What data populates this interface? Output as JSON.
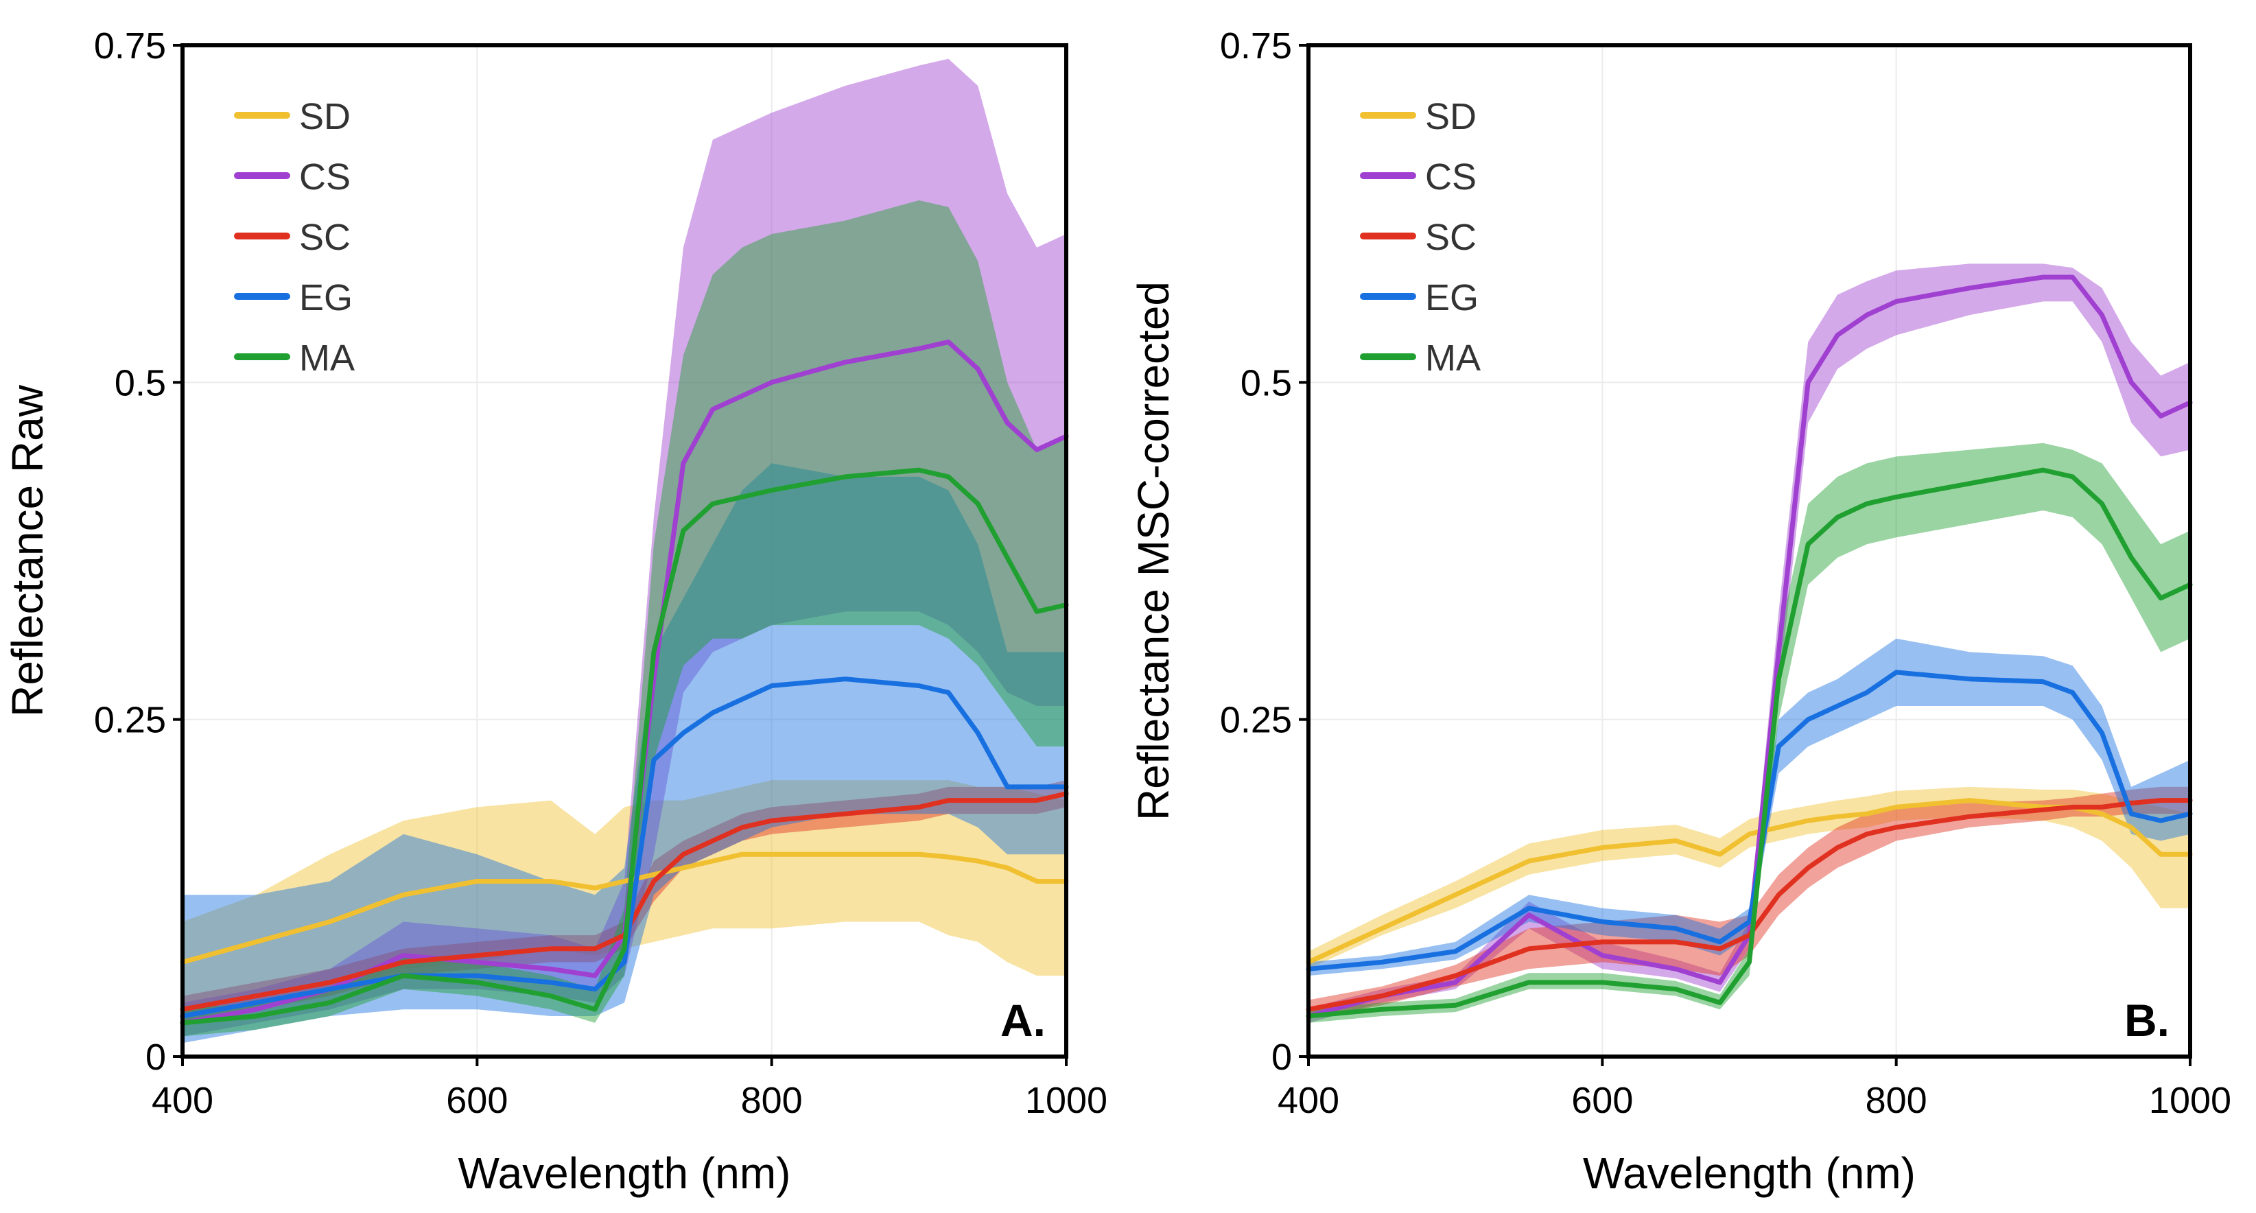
{
  "chart_data": [
    {
      "type": "line",
      "panel_label": "A.",
      "title": "",
      "xlabel": "Wavelength (nm)",
      "ylabel": "Reflectance Raw",
      "xlim": [
        400,
        1000
      ],
      "ylim": [
        0,
        0.75
      ],
      "xticks": [
        400,
        600,
        800,
        1000
      ],
      "yticks": [
        0,
        0.25,
        0.5,
        0.75
      ],
      "xtick_labels": [
        "400",
        "600",
        "800",
        "1000"
      ],
      "ytick_labels": [
        "0",
        "0.25",
        "0.5",
        "0.75"
      ],
      "grid": true,
      "legend_position": "top-left",
      "x": [
        400,
        450,
        500,
        550,
        600,
        650,
        680,
        700,
        720,
        740,
        760,
        780,
        800,
        850,
        900,
        920,
        940,
        960,
        980,
        1000
      ],
      "series": [
        {
          "name": "SD",
          "color": "#f0c030",
          "mean": [
            0.07,
            0.085,
            0.1,
            0.12,
            0.13,
            0.13,
            0.125,
            0.13,
            0.135,
            0.14,
            0.145,
            0.15,
            0.15,
            0.15,
            0.15,
            0.148,
            0.145,
            0.14,
            0.13,
            0.13
          ],
          "lower": [
            0.03,
            0.04,
            0.05,
            0.065,
            0.07,
            0.08,
            0.075,
            0.08,
            0.085,
            0.09,
            0.095,
            0.095,
            0.095,
            0.1,
            0.1,
            0.09,
            0.085,
            0.07,
            0.06,
            0.06
          ],
          "upper": [
            0.1,
            0.12,
            0.15,
            0.175,
            0.185,
            0.19,
            0.165,
            0.185,
            0.19,
            0.19,
            0.195,
            0.2,
            0.205,
            0.205,
            0.205,
            0.205,
            0.2,
            0.2,
            0.195,
            0.19
          ]
        },
        {
          "name": "CS",
          "color": "#a040d0",
          "mean": [
            0.025,
            0.035,
            0.05,
            0.075,
            0.07,
            0.065,
            0.06,
            0.09,
            0.28,
            0.44,
            0.48,
            0.49,
            0.5,
            0.515,
            0.525,
            0.53,
            0.51,
            0.47,
            0.45,
            0.46
          ],
          "lower": [
            0.015,
            0.025,
            0.035,
            0.05,
            0.05,
            0.045,
            0.04,
            0.06,
            0.15,
            0.27,
            0.3,
            0.31,
            0.32,
            0.33,
            0.33,
            0.32,
            0.3,
            0.27,
            0.26,
            0.26
          ],
          "upper": [
            0.04,
            0.05,
            0.065,
            0.1,
            0.095,
            0.09,
            0.08,
            0.13,
            0.4,
            0.6,
            0.68,
            0.69,
            0.7,
            0.72,
            0.735,
            0.74,
            0.72,
            0.64,
            0.6,
            0.61
          ]
        },
        {
          "name": "SC",
          "color": "#e03020",
          "mean": [
            0.035,
            0.045,
            0.055,
            0.07,
            0.075,
            0.08,
            0.08,
            0.09,
            0.13,
            0.15,
            0.16,
            0.17,
            0.175,
            0.18,
            0.185,
            0.19,
            0.19,
            0.19,
            0.19,
            0.195
          ],
          "lower": [
            0.025,
            0.035,
            0.045,
            0.06,
            0.065,
            0.07,
            0.07,
            0.08,
            0.115,
            0.14,
            0.15,
            0.16,
            0.165,
            0.17,
            0.175,
            0.18,
            0.18,
            0.18,
            0.18,
            0.185
          ],
          "upper": [
            0.045,
            0.055,
            0.065,
            0.08,
            0.085,
            0.09,
            0.09,
            0.1,
            0.145,
            0.16,
            0.17,
            0.18,
            0.185,
            0.19,
            0.195,
            0.2,
            0.2,
            0.2,
            0.2,
            0.205
          ]
        },
        {
          "name": "EG",
          "color": "#1870e0",
          "mean": [
            0.03,
            0.04,
            0.05,
            0.06,
            0.06,
            0.055,
            0.05,
            0.07,
            0.22,
            0.24,
            0.255,
            0.265,
            0.275,
            0.28,
            0.275,
            0.27,
            0.24,
            0.2,
            0.2,
            0.2
          ],
          "lower": [
            0.01,
            0.02,
            0.03,
            0.035,
            0.035,
            0.03,
            0.03,
            0.04,
            0.12,
            0.14,
            0.15,
            0.16,
            0.17,
            0.18,
            0.18,
            0.18,
            0.17,
            0.15,
            0.15,
            0.15
          ],
          "upper": [
            0.12,
            0.12,
            0.13,
            0.165,
            0.15,
            0.13,
            0.12,
            0.14,
            0.3,
            0.34,
            0.38,
            0.42,
            0.44,
            0.43,
            0.43,
            0.42,
            0.38,
            0.3,
            0.3,
            0.3
          ]
        },
        {
          "name": "MA",
          "color": "#20a030",
          "mean": [
            0.025,
            0.03,
            0.04,
            0.06,
            0.055,
            0.045,
            0.035,
            0.08,
            0.3,
            0.39,
            0.41,
            0.415,
            0.42,
            0.43,
            0.435,
            0.43,
            0.41,
            0.37,
            0.33,
            0.335
          ],
          "lower": [
            0.015,
            0.02,
            0.03,
            0.05,
            0.045,
            0.035,
            0.025,
            0.06,
            0.22,
            0.29,
            0.31,
            0.31,
            0.32,
            0.32,
            0.32,
            0.31,
            0.29,
            0.26,
            0.23,
            0.23
          ],
          "upper": [
            0.035,
            0.04,
            0.05,
            0.075,
            0.07,
            0.06,
            0.05,
            0.11,
            0.38,
            0.52,
            0.58,
            0.6,
            0.61,
            0.62,
            0.635,
            0.63,
            0.59,
            0.5,
            0.45,
            0.46
          ]
        }
      ]
    },
    {
      "type": "line",
      "panel_label": "B.",
      "title": "",
      "xlabel": "Wavelength (nm)",
      "ylabel": "Reflectance MSC-corrected",
      "xlim": [
        400,
        1000
      ],
      "ylim": [
        0,
        0.75
      ],
      "xticks": [
        400,
        600,
        800,
        1000
      ],
      "yticks": [
        0,
        0.25,
        0.5,
        0.75
      ],
      "xtick_labels": [
        "400",
        "600",
        "800",
        "1000"
      ],
      "ytick_labels": [
        "0",
        "0.25",
        "0.5",
        "0.75"
      ],
      "grid": true,
      "legend_position": "top-left",
      "x": [
        400,
        450,
        500,
        550,
        600,
        650,
        680,
        700,
        720,
        740,
        760,
        780,
        800,
        850,
        900,
        920,
        940,
        960,
        980,
        1000
      ],
      "series": [
        {
          "name": "SD",
          "color": "#f0c030",
          "mean": [
            0.07,
            0.095,
            0.12,
            0.145,
            0.155,
            0.16,
            0.15,
            0.165,
            0.17,
            0.175,
            0.178,
            0.18,
            0.185,
            0.19,
            0.185,
            0.185,
            0.18,
            0.17,
            0.15,
            0.15
          ],
          "lower": [
            0.065,
            0.09,
            0.11,
            0.135,
            0.145,
            0.15,
            0.14,
            0.155,
            0.16,
            0.165,
            0.168,
            0.17,
            0.175,
            0.178,
            0.175,
            0.17,
            0.16,
            0.14,
            0.11,
            0.11
          ],
          "upper": [
            0.078,
            0.105,
            0.13,
            0.158,
            0.168,
            0.172,
            0.162,
            0.176,
            0.182,
            0.186,
            0.19,
            0.193,
            0.197,
            0.2,
            0.198,
            0.198,
            0.195,
            0.19,
            0.185,
            0.18
          ]
        },
        {
          "name": "CS",
          "color": "#a040d0",
          "mean": [
            0.03,
            0.045,
            0.055,
            0.105,
            0.075,
            0.065,
            0.055,
            0.09,
            0.3,
            0.5,
            0.535,
            0.55,
            0.56,
            0.57,
            0.578,
            0.578,
            0.55,
            0.5,
            0.475,
            0.485
          ],
          "lower": [
            0.025,
            0.04,
            0.05,
            0.095,
            0.065,
            0.058,
            0.048,
            0.08,
            0.27,
            0.47,
            0.51,
            0.525,
            0.535,
            0.55,
            0.56,
            0.56,
            0.53,
            0.47,
            0.445,
            0.45
          ],
          "upper": [
            0.036,
            0.05,
            0.06,
            0.115,
            0.085,
            0.072,
            0.062,
            0.1,
            0.33,
            0.53,
            0.565,
            0.575,
            0.583,
            0.588,
            0.588,
            0.585,
            0.57,
            0.53,
            0.505,
            0.515
          ]
        },
        {
          "name": "SC",
          "color": "#e03020",
          "mean": [
            0.035,
            0.045,
            0.06,
            0.08,
            0.085,
            0.085,
            0.08,
            0.09,
            0.12,
            0.14,
            0.155,
            0.165,
            0.17,
            0.178,
            0.183,
            0.185,
            0.185,
            0.188,
            0.19,
            0.19
          ],
          "lower": [
            0.028,
            0.038,
            0.052,
            0.065,
            0.07,
            0.065,
            0.06,
            0.075,
            0.105,
            0.125,
            0.14,
            0.15,
            0.16,
            0.17,
            0.175,
            0.178,
            0.178,
            0.18,
            0.18,
            0.18
          ],
          "upper": [
            0.042,
            0.052,
            0.068,
            0.095,
            0.1,
            0.105,
            0.1,
            0.105,
            0.135,
            0.155,
            0.17,
            0.18,
            0.185,
            0.188,
            0.19,
            0.192,
            0.195,
            0.198,
            0.2,
            0.2
          ]
        },
        {
          "name": "EG",
          "color": "#1870e0",
          "mean": [
            0.065,
            0.07,
            0.078,
            0.11,
            0.1,
            0.095,
            0.085,
            0.1,
            0.23,
            0.25,
            0.26,
            0.27,
            0.285,
            0.28,
            0.278,
            0.27,
            0.24,
            0.18,
            0.175,
            0.18
          ],
          "lower": [
            0.06,
            0.065,
            0.072,
            0.1,
            0.09,
            0.085,
            0.075,
            0.09,
            0.21,
            0.23,
            0.24,
            0.25,
            0.26,
            0.26,
            0.26,
            0.25,
            0.22,
            0.165,
            0.16,
            0.165
          ],
          "upper": [
            0.07,
            0.075,
            0.085,
            0.12,
            0.11,
            0.105,
            0.095,
            0.11,
            0.25,
            0.27,
            0.28,
            0.295,
            0.31,
            0.3,
            0.297,
            0.29,
            0.26,
            0.2,
            0.21,
            0.22
          ]
        },
        {
          "name": "MA",
          "color": "#20a030",
          "mean": [
            0.03,
            0.035,
            0.038,
            0.055,
            0.055,
            0.05,
            0.04,
            0.07,
            0.28,
            0.38,
            0.4,
            0.41,
            0.415,
            0.425,
            0.435,
            0.43,
            0.41,
            0.37,
            0.34,
            0.35
          ],
          "lower": [
            0.025,
            0.03,
            0.033,
            0.05,
            0.05,
            0.045,
            0.035,
            0.06,
            0.25,
            0.35,
            0.37,
            0.38,
            0.385,
            0.395,
            0.405,
            0.4,
            0.38,
            0.34,
            0.3,
            0.31
          ],
          "upper": [
            0.035,
            0.04,
            0.043,
            0.062,
            0.062,
            0.056,
            0.046,
            0.08,
            0.31,
            0.41,
            0.43,
            0.44,
            0.445,
            0.45,
            0.455,
            0.45,
            0.44,
            0.41,
            0.38,
            0.39
          ]
        }
      ]
    }
  ]
}
